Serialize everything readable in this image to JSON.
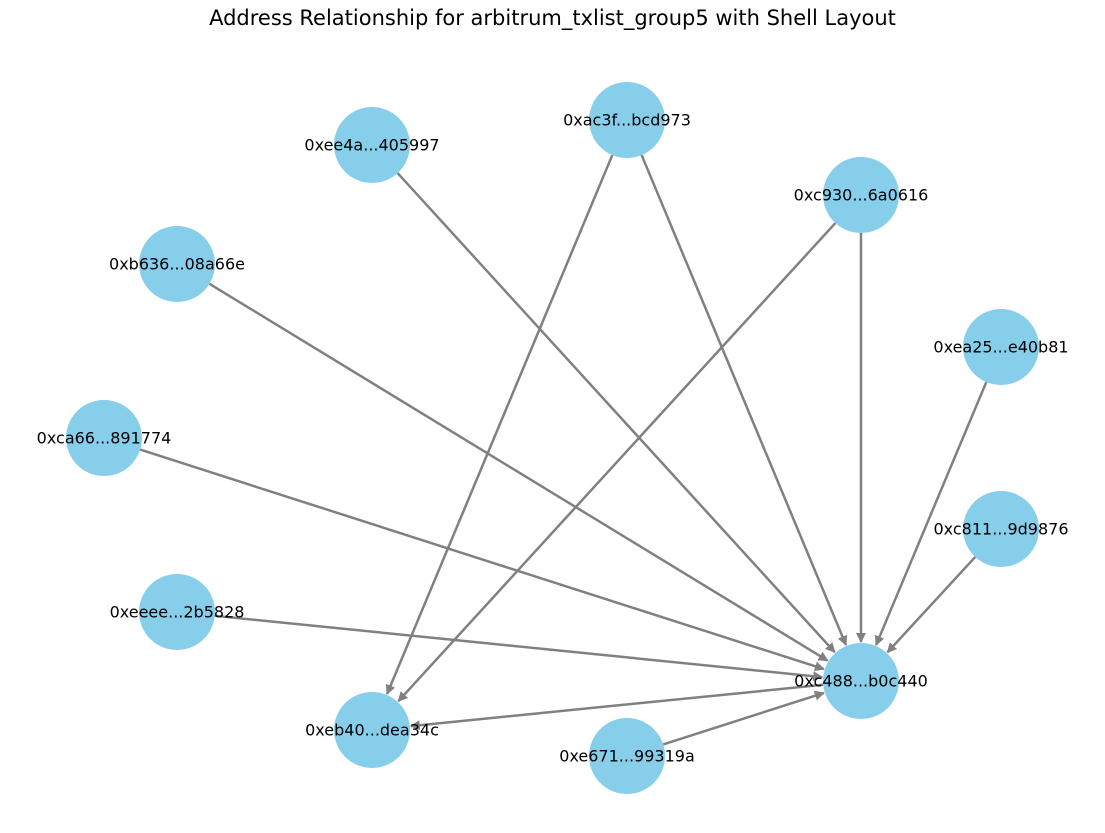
{
  "title": "Address Relationship for arbitrum_txlist_group5 with Shell Layout",
  "colors": {
    "node_fill": "#87CEEB",
    "edge": "#808080",
    "label": "#000000"
  },
  "nodes": [
    {
      "id": "0xac3f",
      "label": "0xac3f...bcd973"
    },
    {
      "id": "0xee4a",
      "label": "0xee4a...405997"
    },
    {
      "id": "0xc930",
      "label": "0xc930...6a0616"
    },
    {
      "id": "0xb636",
      "label": "0xb636...08a66e"
    },
    {
      "id": "0xea25",
      "label": "0xea25...e40b81"
    },
    {
      "id": "0xca66",
      "label": "0xca66...891774"
    },
    {
      "id": "0xc811",
      "label": "0xc811...9d9876"
    },
    {
      "id": "0xeeee",
      "label": "0xeeee...2b5828"
    },
    {
      "id": "0xc488",
      "label": "0xc488...b0c440"
    },
    {
      "id": "0xeb40",
      "label": "0xeb40...dea34c"
    },
    {
      "id": "0xe671",
      "label": "0xe671...99319a"
    }
  ],
  "edges": [
    {
      "source": "0xac3f",
      "target": "0xc488"
    },
    {
      "source": "0xac3f",
      "target": "0xeb40"
    },
    {
      "source": "0xee4a",
      "target": "0xc488"
    },
    {
      "source": "0xc930",
      "target": "0xc488"
    },
    {
      "source": "0xc930",
      "target": "0xeb40"
    },
    {
      "source": "0xb636",
      "target": "0xc488"
    },
    {
      "source": "0xea25",
      "target": "0xc488"
    },
    {
      "source": "0xca66",
      "target": "0xc488"
    },
    {
      "source": "0xc811",
      "target": "0xc488"
    },
    {
      "source": "0xeeee",
      "target": "0xc488"
    },
    {
      "source": "0xc488",
      "target": "0xeb40"
    },
    {
      "source": "0xe671",
      "target": "0xc488"
    }
  ]
}
